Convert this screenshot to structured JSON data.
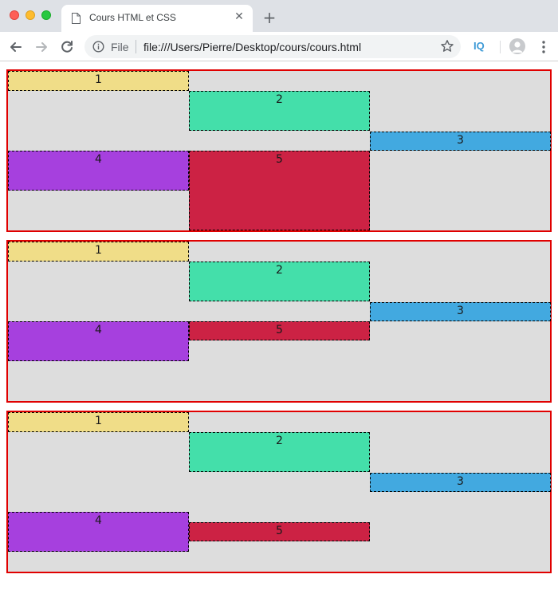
{
  "browser": {
    "tab": {
      "title": "Cours HTML et CSS",
      "close_glyph": "✕",
      "icon": "document-icon"
    },
    "new_tab_glyph": "+",
    "omnibox": {
      "scheme_label": "File",
      "url": "file:///Users/Pierre/Desktop/cours/cours.html"
    },
    "extension_label": "IQ"
  },
  "colors": {
    "box1": "#f0dd88",
    "box2": "#44dfaa",
    "box3": "#42a9e0",
    "box4": "#a640de",
    "box5": "#cc2244",
    "container_border": "#e00000",
    "container_bg": "#dddddd"
  },
  "containers": [
    {
      "boxes": [
        {
          "label": "1"
        },
        {
          "label": "2"
        },
        {
          "label": "3"
        },
        {
          "label": "4"
        },
        {
          "label": "5"
        }
      ]
    },
    {
      "boxes": [
        {
          "label": "1"
        },
        {
          "label": "2"
        },
        {
          "label": "3"
        },
        {
          "label": "4"
        },
        {
          "label": "5"
        }
      ]
    },
    {
      "boxes": [
        {
          "label": "1"
        },
        {
          "label": "2"
        },
        {
          "label": "3"
        },
        {
          "label": "4"
        },
        {
          "label": "5"
        }
      ]
    }
  ]
}
